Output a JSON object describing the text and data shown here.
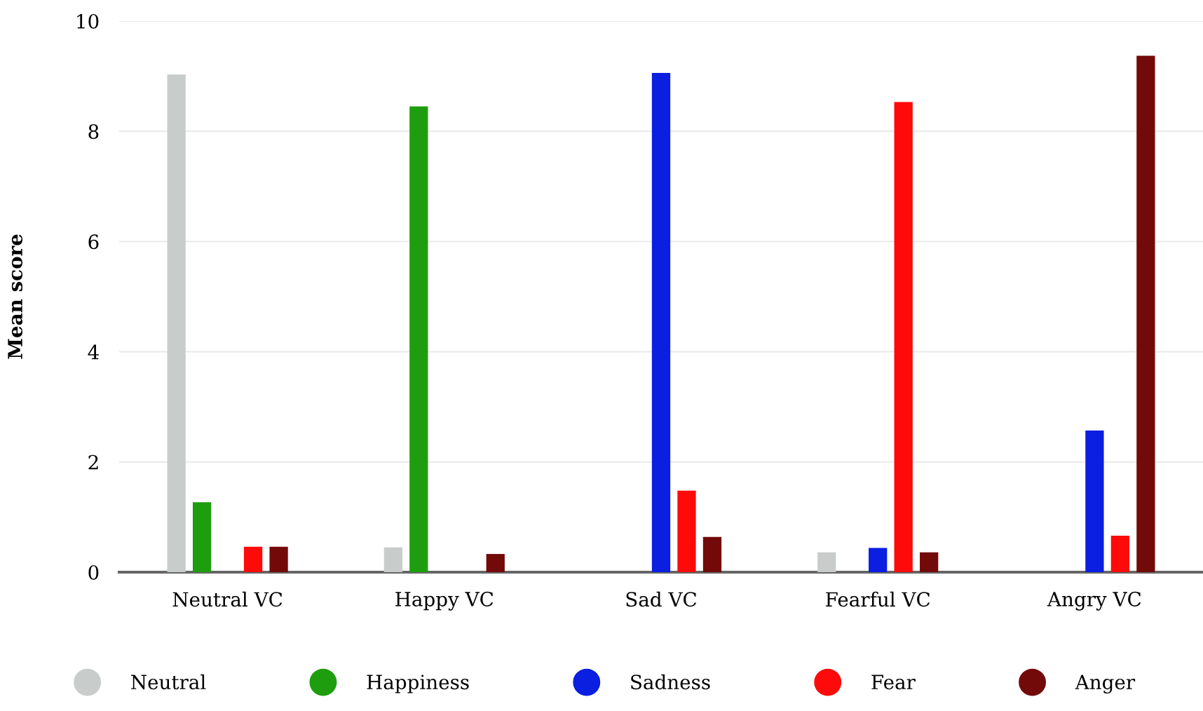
{
  "chart_data": {
    "type": "bar",
    "ylabel": "Mean score",
    "categories": [
      "Neutral VC",
      "Happy VC",
      "Sad VC",
      "Fearful VC",
      "Angry VC"
    ],
    "series": [
      {
        "name": "Neutral",
        "color": "#c8cdcb",
        "values": [
          9.03,
          0.45,
          null,
          0.36,
          null
        ]
      },
      {
        "name": "Happiness",
        "color": "#1e9e0e",
        "values": [
          1.27,
          8.45,
          null,
          null,
          null
        ]
      },
      {
        "name": "Sadness",
        "color": "#0a1fe0",
        "values": [
          null,
          null,
          9.06,
          0.44,
          2.57
        ]
      },
      {
        "name": "Fear",
        "color": "#ff0a0a",
        "values": [
          0.46,
          null,
          1.48,
          8.53,
          0.66
        ]
      },
      {
        "name": "Anger",
        "color": "#730a0a",
        "values": [
          0.46,
          0.33,
          0.64,
          0.36,
          9.37
        ]
      }
    ],
    "ylim": [
      0,
      10
    ],
    "yticks": [
      0,
      2,
      4,
      6,
      8,
      10
    ],
    "grid": "y",
    "legend": "bottom"
  }
}
